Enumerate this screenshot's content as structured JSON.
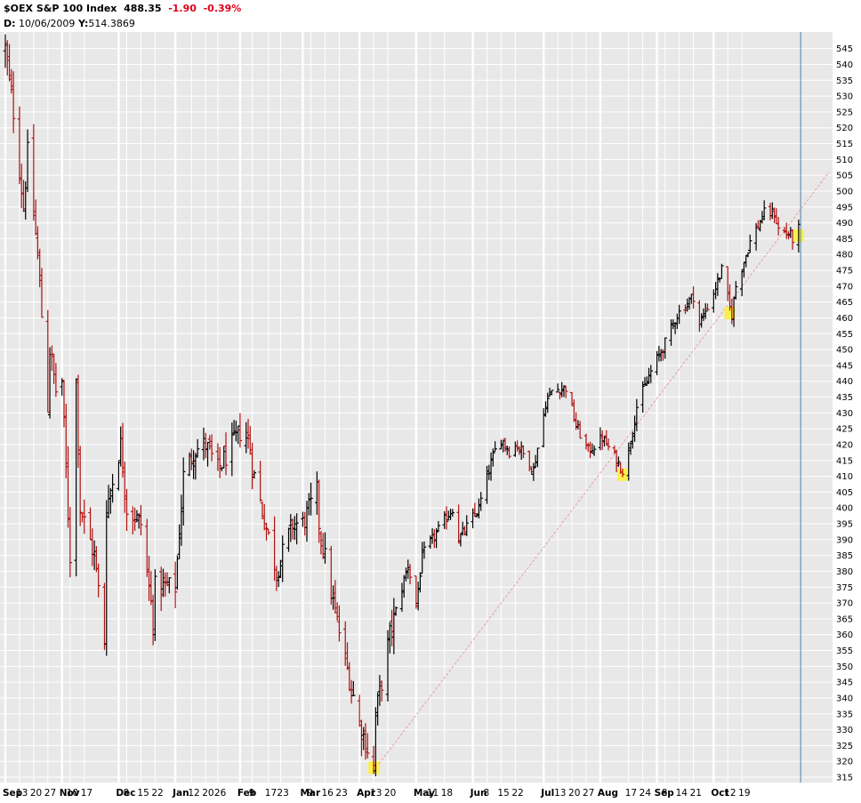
{
  "header": {
    "symbol": "$OEX",
    "name": "S&P 100 Index",
    "last": "488.35",
    "change": "-1.90",
    "change_pct": "-0.39%",
    "cursor_label_d": "D:",
    "cursor_date": "10/06/2009",
    "cursor_label_y": "Y:",
    "cursor_value": "514.3869"
  },
  "chart_data": {
    "type": "ohlc",
    "title": "$OEX S&P 100 Index",
    "ylim": [
      315,
      548
    ],
    "y_ticks": [
      315,
      320,
      325,
      330,
      335,
      340,
      345,
      350,
      355,
      360,
      365,
      370,
      375,
      380,
      385,
      390,
      395,
      400,
      405,
      410,
      415,
      420,
      425,
      430,
      435,
      440,
      445,
      450,
      455,
      460,
      465,
      470,
      475,
      480,
      485,
      490,
      495,
      500,
      505,
      510,
      515,
      520,
      525,
      530,
      535,
      540,
      545
    ],
    "x_range": [
      "2008-09-08",
      "2009-10-20"
    ],
    "x_ticks": [
      {
        "date": "2008-09-08",
        "label": "Sep",
        "month": true
      },
      {
        "date": "2008-09-15",
        "label": "13"
      },
      {
        "date": "2008-09-22",
        "label": "20"
      },
      {
        "date": "2008-09-29",
        "label": "27"
      },
      {
        "date": "2008-10-06",
        "label": "Nov",
        "month": true
      },
      {
        "date": "2008-10-10",
        "label": "10"
      },
      {
        "date": "2008-10-17",
        "label": "17"
      },
      {
        "date": "2008-11-03",
        "label": "Dec",
        "month": true
      },
      {
        "date": "2008-11-07",
        "label": "8"
      },
      {
        "date": "2008-11-14",
        "label": "15"
      },
      {
        "date": "2008-11-21",
        "label": "22"
      },
      {
        "date": "2008-12-01",
        "label": "Jan",
        "month": true
      },
      {
        "date": "2008-12-09",
        "label": "12"
      },
      {
        "date": "2008-12-16",
        "label": "20"
      },
      {
        "date": "2008-12-22",
        "label": "26"
      },
      {
        "date": "2009-01-02",
        "label": "Feb",
        "month": true
      },
      {
        "date": "2009-01-08",
        "label": "9"
      },
      {
        "date": "2009-01-16",
        "label": "17"
      },
      {
        "date": "2009-01-22",
        "label": "23"
      },
      {
        "date": "2009-02-02",
        "label": "Mar",
        "month": true
      },
      {
        "date": "2009-02-06",
        "label": "9"
      },
      {
        "date": "2009-02-13",
        "label": "16"
      },
      {
        "date": "2009-02-20",
        "label": "23"
      },
      {
        "date": "2009-03-02",
        "label": "Apr",
        "month": true
      },
      {
        "date": "2009-03-09",
        "label": "13"
      },
      {
        "date": "2009-03-16",
        "label": "20"
      },
      {
        "date": "2009-03-30",
        "label": "May",
        "month": true
      },
      {
        "date": "2009-04-06",
        "label": "11"
      },
      {
        "date": "2009-04-13",
        "label": "18"
      },
      {
        "date": "2009-04-27",
        "label": "Jun",
        "month": true
      },
      {
        "date": "2009-05-04",
        "label": "8"
      },
      {
        "date": "2009-05-11",
        "label": "15"
      },
      {
        "date": "2009-05-18",
        "label": "22"
      },
      {
        "date": "2009-06-01",
        "label": "Jul",
        "month": true
      },
      {
        "date": "2009-06-08",
        "label": "13"
      },
      {
        "date": "2009-06-15",
        "label": "20"
      },
      {
        "date": "2009-06-22",
        "label": "27"
      },
      {
        "date": "2009-06-29",
        "label": "Aug",
        "month": true
      },
      {
        "date": "2009-07-13",
        "label": "17"
      },
      {
        "date": "2009-07-20",
        "label": "24"
      },
      {
        "date": "2009-07-27",
        "label": "Sep",
        "month": true
      },
      {
        "date": "2009-07-31",
        "label": "8"
      },
      {
        "date": "2009-08-07",
        "label": "14"
      },
      {
        "date": "2009-08-14",
        "label": "21"
      },
      {
        "date": "2009-08-24",
        "label": "Oct",
        "month": true
      },
      {
        "date": "2009-08-31",
        "label": "12"
      },
      {
        "date": "2009-09-07",
        "label": "19"
      }
    ],
    "colors": {
      "up": "#000000",
      "down": "#b01010",
      "background": "#e8e8e8",
      "grid": "#ffffff",
      "trendline": "#e8a0a0",
      "highlight": "#ffef3a",
      "cursor": "#4a7fa8"
    },
    "trendline": {
      "start": {
        "date": "2009-03-09",
        "value": 317
      },
      "end": {
        "date": "2009-10-20",
        "value": 506
      }
    },
    "highlights": [
      {
        "date": "2009-03-09",
        "value": 318
      },
      {
        "date": "2009-07-10",
        "value": 410.5
      },
      {
        "date": "2009-09-01",
        "value": 461.5
      },
      {
        "date": "2009-10-05",
        "value": 486
      }
    ],
    "cursor_date": "2009-10-06",
    "anchors": [
      [
        "2008-09-08",
        545
      ],
      [
        "2008-09-12",
        525
      ],
      [
        "2008-09-17",
        495
      ],
      [
        "2008-09-19",
        512
      ],
      [
        "2008-09-24",
        480
      ],
      [
        "2008-09-29",
        432
      ],
      [
        "2008-09-30",
        450
      ],
      [
        "2008-10-03",
        437
      ],
      [
        "2008-10-06",
        440
      ],
      [
        "2008-10-09",
        398
      ],
      [
        "2008-10-10",
        385
      ],
      [
        "2008-10-13",
        440
      ],
      [
        "2008-10-15",
        400
      ],
      [
        "2008-10-22",
        385
      ],
      [
        "2008-10-27",
        358
      ],
      [
        "2008-10-28",
        400
      ],
      [
        "2008-11-04",
        420
      ],
      [
        "2008-11-07",
        400
      ],
      [
        "2008-11-14",
        395
      ],
      [
        "2008-11-20",
        365
      ],
      [
        "2008-11-21",
        375
      ],
      [
        "2008-12-01",
        375
      ],
      [
        "2008-12-05",
        410
      ],
      [
        "2008-12-10",
        418
      ],
      [
        "2008-12-16",
        420
      ],
      [
        "2008-12-22",
        412
      ],
      [
        "2009-01-02",
        424
      ],
      [
        "2009-01-06",
        422
      ],
      [
        "2009-01-09",
        410
      ],
      [
        "2009-01-20",
        380
      ],
      [
        "2009-01-28",
        395
      ],
      [
        "2009-02-02",
        395
      ],
      [
        "2009-02-09",
        405
      ],
      [
        "2009-02-10",
        395
      ],
      [
        "2009-02-17",
        370
      ],
      [
        "2009-02-23",
        352
      ],
      [
        "2009-03-02",
        332
      ],
      [
        "2009-03-09",
        318
      ],
      [
        "2009-03-10",
        335
      ],
      [
        "2009-03-13",
        345
      ],
      [
        "2009-03-17",
        360
      ],
      [
        "2009-03-23",
        375
      ],
      [
        "2009-03-26",
        382
      ],
      [
        "2009-03-30",
        369
      ],
      [
        "2009-04-02",
        385
      ],
      [
        "2009-04-09",
        392
      ],
      [
        "2009-04-17",
        400
      ],
      [
        "2009-04-20",
        390
      ],
      [
        "2009-04-30",
        400
      ],
      [
        "2009-05-04",
        410
      ],
      [
        "2009-05-08",
        418
      ],
      [
        "2009-05-11",
        422
      ],
      [
        "2009-05-15",
        418
      ],
      [
        "2009-05-19",
        420
      ],
      [
        "2009-05-27",
        412
      ],
      [
        "2009-06-02",
        433
      ],
      [
        "2009-06-05",
        437
      ],
      [
        "2009-06-12",
        438
      ],
      [
        "2009-06-17",
        426
      ],
      [
        "2009-06-23",
        418
      ],
      [
        "2009-06-30",
        422
      ],
      [
        "2009-07-06",
        416
      ],
      [
        "2009-07-10",
        412
      ],
      [
        "2009-07-13",
        418
      ],
      [
        "2009-07-17",
        432
      ],
      [
        "2009-07-24",
        443
      ],
      [
        "2009-07-31",
        452
      ],
      [
        "2009-08-06",
        461
      ],
      [
        "2009-08-14",
        467
      ],
      [
        "2009-08-17",
        458
      ],
      [
        "2009-08-24",
        468
      ],
      [
        "2009-08-28",
        475
      ],
      [
        "2009-09-01",
        463
      ],
      [
        "2009-09-02",
        461
      ],
      [
        "2009-09-04",
        470
      ],
      [
        "2009-09-11",
        484
      ],
      [
        "2009-09-18",
        493
      ],
      [
        "2009-09-23",
        493
      ],
      [
        "2009-09-25",
        488
      ],
      [
        "2009-10-01",
        486
      ],
      [
        "2009-10-02",
        485
      ],
      [
        "2009-10-05",
        488
      ]
    ]
  }
}
